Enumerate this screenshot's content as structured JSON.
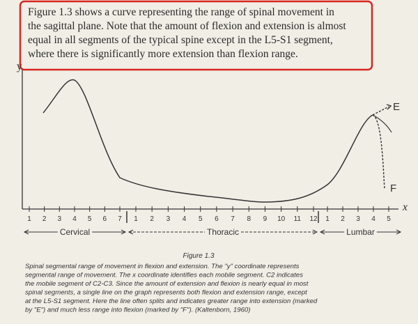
{
  "highlight": {
    "lines": [
      "Figure 1.3 shows a curve representing the range of spinal movement in",
      "the sagittal plane. Note that the amount of flexion and extension is almost",
      "equal in all segments of the typical spine except in the L5-S1 segment,",
      "where there is significantly more extension than flexion range."
    ]
  },
  "figure": {
    "y_axis_label": "y",
    "x_axis_label": "x",
    "extension_label": "E",
    "flexion_label": "F",
    "segments": [
      {
        "name": "Cervical",
        "ticks": [
          "1",
          "2",
          "3",
          "4",
          "5",
          "6",
          "7"
        ]
      },
      {
        "name": "Thoracic",
        "ticks": [
          "1",
          "2",
          "3",
          "4",
          "5",
          "6",
          "7",
          "8",
          "9",
          "10",
          "11",
          "12"
        ]
      },
      {
        "name": "Lumbar",
        "ticks": [
          "1",
          "2",
          "3",
          "4",
          "5"
        ]
      }
    ],
    "caption_title": "Figure 1.3",
    "caption_lines": [
      "Spinal segmental range of movement in flexion and extension. The \"y\" coordinate represents",
      "segmental range of movement. The x coordinate identifies each mobile segment. C2 indicates",
      "the mobile segment of C2-C3. Since the amount of extension and flexion is nearly equal in most",
      "spinal segments, a single line on the graph represents both flexion and extension range, except",
      "at the L5-S1 segment. Here the line often splits and indicates greater range into extension (marked",
      "by \"E\") and much less range into flexion (marked by \"F\"). (Kaltenborn, 1960)"
    ]
  }
}
